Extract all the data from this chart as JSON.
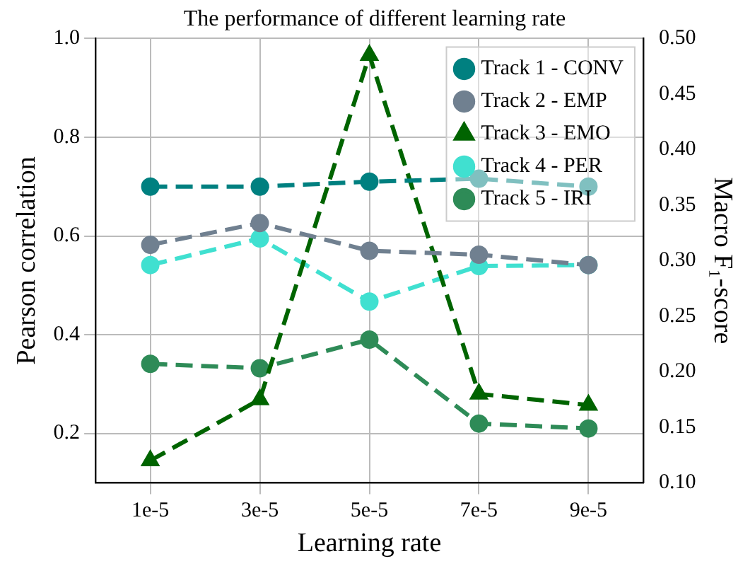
{
  "chart_data": {
    "type": "line",
    "title": "The performance of different learning rate",
    "xlabel": "Learning rate",
    "ylabel": "Pearson correlation",
    "y2label": "Macro F₁-score",
    "categories": [
      "1e-5",
      "3e-5",
      "5e-5",
      "7e-5",
      "9e-5"
    ],
    "series": [
      {
        "name": "Track 1 - CONV",
        "color": "#008080",
        "marker": "circle",
        "values": [
          0.7,
          0.7,
          0.71,
          0.716,
          0.7
        ]
      },
      {
        "name": "Track 2 - EMP",
        "color": "#708090",
        "marker": "circle",
        "values": [
          0.582,
          0.626,
          0.57,
          0.562,
          0.541
        ]
      },
      {
        "name": "Track 3 - EMO",
        "color": "#006400",
        "marker": "triangle",
        "axis": "y2",
        "values": [
          0.12,
          0.175,
          0.485,
          0.18,
          0.17
        ]
      },
      {
        "name": "Track 4 - PER",
        "color": "#40e0d0",
        "marker": "circle",
        "values": [
          0.541,
          0.595,
          0.467,
          0.539,
          0.541
        ]
      },
      {
        "name": "Track 5 - IRI",
        "color": "#2e8b57",
        "marker": "circle",
        "values": [
          0.341,
          0.332,
          0.39,
          0.22,
          0.21
        ]
      }
    ],
    "ylim": [
      0.1,
      1.0
    ],
    "yticks": [
      0.2,
      0.4,
      0.6,
      0.8,
      {
        "value": 1.0,
        "label": "1.0"
      }
    ],
    "y2lim": [
      0.1,
      0.5
    ],
    "y2ticks": [
      {
        "value": 0.1,
        "label": "0.10"
      },
      {
        "value": 0.15,
        "label": "0.15"
      },
      {
        "value": 0.2,
        "label": "0.20"
      },
      {
        "value": 0.25,
        "label": "0.25"
      },
      {
        "value": 0.3,
        "label": "0.30"
      },
      {
        "value": 0.35,
        "label": "0.35"
      },
      {
        "value": 0.4,
        "label": "0.40"
      },
      {
        "value": 0.45,
        "label": "0.45"
      },
      {
        "value": 0.5,
        "label": "0.50"
      }
    ],
    "grid": true,
    "legend": "top right",
    "line_style": "dashed"
  }
}
